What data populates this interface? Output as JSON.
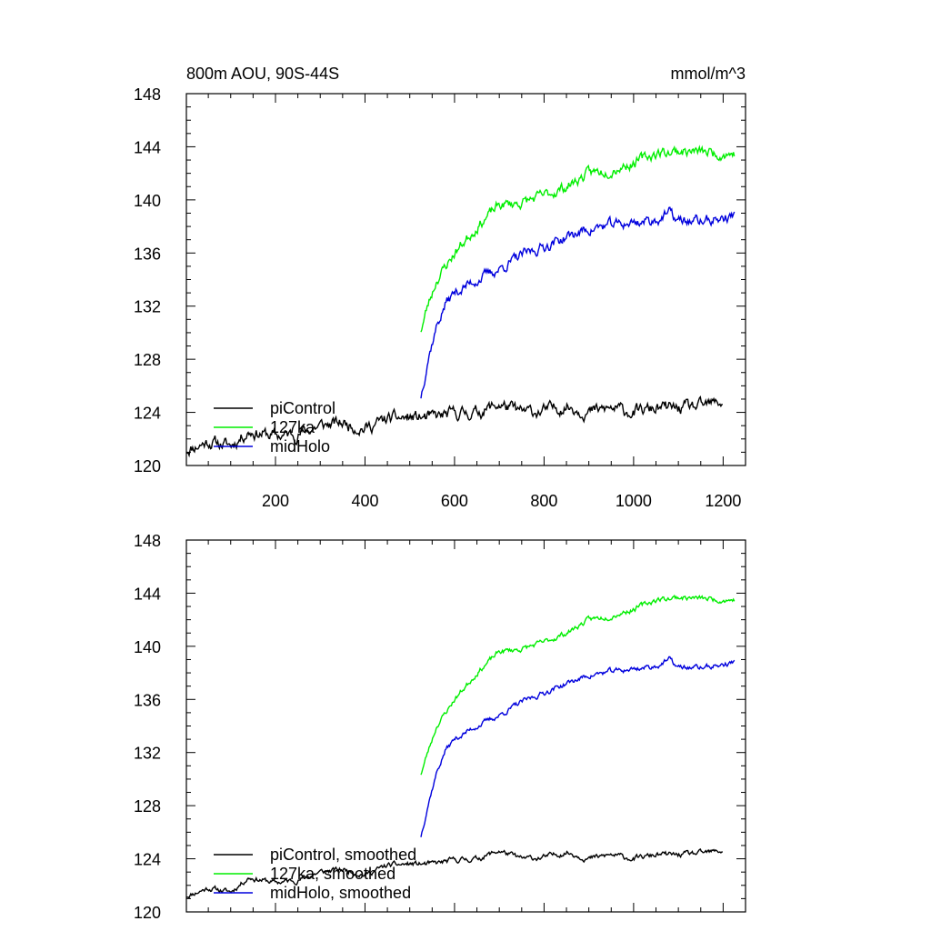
{
  "figure": {
    "title_left": "800m AOU, 90S-44S",
    "title_right": "mmol/m^3"
  },
  "colors": {
    "piControl": "#000000",
    "127ka": "#00ee00",
    "midHolo": "#0000dd",
    "axis": "#000000"
  },
  "chart_data": [
    {
      "type": "line",
      "title": "800m AOU, 90S-44S",
      "units": "mmol/m^3",
      "xlim": [
        1,
        1250
      ],
      "ylim": [
        120,
        148
      ],
      "x_ticks": [
        200,
        400,
        600,
        800,
        1000,
        1200
      ],
      "x_tick_labels": [
        "200",
        "400",
        "600",
        "800",
        "1000",
        "1200"
      ],
      "y_ticks": [
        120,
        124,
        128,
        132,
        136,
        140,
        144,
        148
      ],
      "y_tick_labels": [
        "120",
        "124",
        "128",
        "132",
        "136",
        "140",
        "144",
        "148"
      ],
      "legend_placement": "bottom-left",
      "series": [
        {
          "name": "piControl",
          "color": "#000000",
          "noise": 0.35,
          "seed": 11,
          "points": [
            [
              1,
              121.2
            ],
            [
              50,
              121.8
            ],
            [
              100,
              121.5
            ],
            [
              140,
              122.6
            ],
            [
              200,
              122.2
            ],
            [
              250,
              122.4
            ],
            [
              300,
              123.0
            ],
            [
              350,
              123.2
            ],
            [
              400,
              122.8
            ],
            [
              450,
              123.5
            ],
            [
              500,
              123.6
            ],
            [
              550,
              123.6
            ],
            [
              600,
              123.9
            ],
            [
              650,
              124.0
            ],
            [
              700,
              124.6
            ],
            [
              750,
              124.0
            ],
            [
              800,
              124.1
            ],
            [
              850,
              124.5
            ],
            [
              900,
              124.0
            ],
            [
              950,
              124.3
            ],
            [
              1000,
              124.0
            ],
            [
              1050,
              124.3
            ],
            [
              1100,
              124.3
            ],
            [
              1150,
              124.4
            ],
            [
              1200,
              124.8
            ]
          ]
        },
        {
          "name": "127ka",
          "color": "#00ee00",
          "noise": 0.3,
          "seed": 23,
          "points": [
            [
              525,
              130.2
            ],
            [
              540,
              132.0
            ],
            [
              560,
              134.0
            ],
            [
              600,
              136.0
            ],
            [
              650,
              138.0
            ],
            [
              700,
              139.6
            ],
            [
              750,
              139.8
            ],
            [
              800,
              140.3
            ],
            [
              850,
              141.0
            ],
            [
              900,
              142.0
            ],
            [
              950,
              142.3
            ],
            [
              1000,
              142.8
            ],
            [
              1050,
              143.5
            ],
            [
              1100,
              143.7
            ],
            [
              1150,
              143.6
            ],
            [
              1200,
              143.5
            ],
            [
              1225,
              143.5
            ]
          ]
        },
        {
          "name": "midHolo",
          "color": "#0000dd",
          "noise": 0.3,
          "seed": 37,
          "points": [
            [
              525,
              125.2
            ],
            [
              540,
              128.0
            ],
            [
              560,
              130.5
            ],
            [
              580,
              132.2
            ],
            [
              600,
              133.0
            ],
            [
              650,
              134.0
            ],
            [
              700,
              134.8
            ],
            [
              750,
              135.8
            ],
            [
              800,
              136.5
            ],
            [
              850,
              137.2
            ],
            [
              900,
              137.8
            ],
            [
              950,
              138.1
            ],
            [
              1000,
              138.3
            ],
            [
              1050,
              138.5
            ],
            [
              1080,
              139.0
            ],
            [
              1100,
              138.4
            ],
            [
              1150,
              138.4
            ],
            [
              1200,
              138.6
            ],
            [
              1225,
              138.8
            ]
          ]
        }
      ]
    },
    {
      "type": "line",
      "xlim": [
        1,
        1250
      ],
      "ylim": [
        120,
        148
      ],
      "x_ticks": [
        200,
        400,
        600,
        800,
        1000,
        1200
      ],
      "y_ticks": [
        120,
        124,
        128,
        132,
        136,
        140,
        144,
        148
      ],
      "y_tick_labels": [
        "120",
        "124",
        "128",
        "132",
        "136",
        "140",
        "144",
        "148"
      ],
      "legend_placement": "bottom-left",
      "series": [
        {
          "name": "piControl, smoothed",
          "color": "#000000",
          "noise": 0.15,
          "seed": 11,
          "points": [
            [
              1,
              121.2
            ],
            [
              50,
              121.8
            ],
            [
              100,
              121.5
            ],
            [
              140,
              122.6
            ],
            [
              200,
              122.2
            ],
            [
              250,
              122.4
            ],
            [
              300,
              123.0
            ],
            [
              350,
              123.2
            ],
            [
              400,
              122.8
            ],
            [
              450,
              123.5
            ],
            [
              500,
              123.6
            ],
            [
              550,
              123.6
            ],
            [
              600,
              123.9
            ],
            [
              650,
              124.0
            ],
            [
              700,
              124.6
            ],
            [
              750,
              124.0
            ],
            [
              800,
              124.1
            ],
            [
              850,
              124.5
            ],
            [
              900,
              124.0
            ],
            [
              950,
              124.3
            ],
            [
              1000,
              124.0
            ],
            [
              1050,
              124.3
            ],
            [
              1100,
              124.3
            ],
            [
              1150,
              124.4
            ],
            [
              1200,
              124.6
            ]
          ]
        },
        {
          "name": "127ka, smoothed",
          "color": "#00ee00",
          "noise": 0.15,
          "seed": 23,
          "points": [
            [
              525,
              130.4
            ],
            [
              540,
              132.0
            ],
            [
              560,
              134.0
            ],
            [
              600,
              136.0
            ],
            [
              650,
              138.0
            ],
            [
              700,
              139.6
            ],
            [
              750,
              139.8
            ],
            [
              800,
              140.3
            ],
            [
              850,
              141.0
            ],
            [
              900,
              142.0
            ],
            [
              950,
              142.3
            ],
            [
              1000,
              142.8
            ],
            [
              1050,
              143.5
            ],
            [
              1100,
              143.7
            ],
            [
              1150,
              143.6
            ],
            [
              1200,
              143.5
            ],
            [
              1225,
              143.5
            ]
          ]
        },
        {
          "name": "midHolo, smoothed",
          "color": "#0000dd",
          "noise": 0.15,
          "seed": 37,
          "points": [
            [
              525,
              125.7
            ],
            [
              540,
              128.0
            ],
            [
              560,
              130.5
            ],
            [
              580,
              132.2
            ],
            [
              600,
              133.0
            ],
            [
              650,
              134.0
            ],
            [
              700,
              134.8
            ],
            [
              750,
              135.8
            ],
            [
              800,
              136.5
            ],
            [
              850,
              137.2
            ],
            [
              900,
              137.8
            ],
            [
              950,
              138.1
            ],
            [
              1000,
              138.3
            ],
            [
              1050,
              138.5
            ],
            [
              1080,
              139.0
            ],
            [
              1100,
              138.4
            ],
            [
              1150,
              138.4
            ],
            [
              1200,
              138.6
            ],
            [
              1225,
              138.8
            ]
          ]
        }
      ]
    }
  ]
}
